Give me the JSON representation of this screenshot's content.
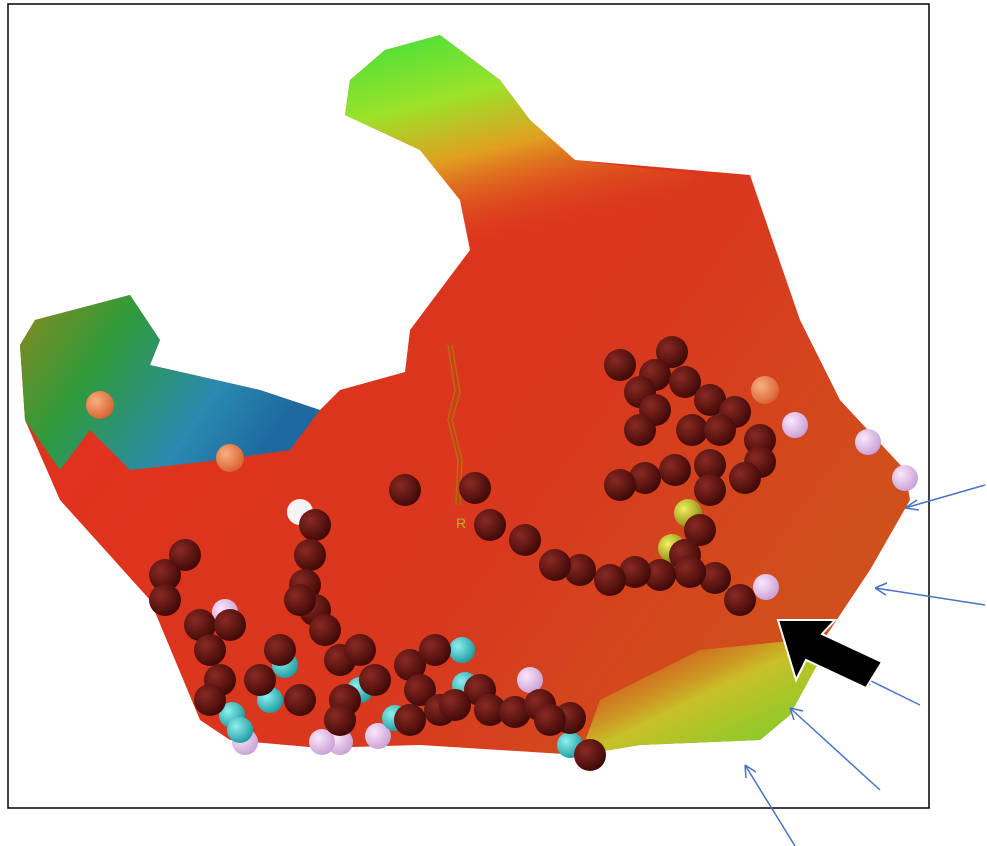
{
  "image": {
    "marker_label": "R"
  }
}
